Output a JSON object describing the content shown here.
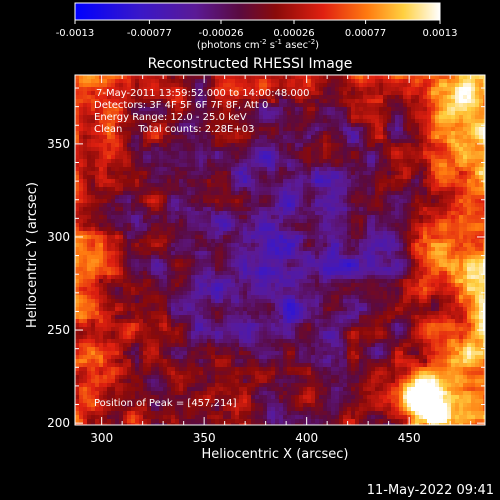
{
  "colorbar": {
    "ticks": [
      "-0.0013",
      "-0.00077",
      "-0.00026",
      "0.00026",
      "0.00077",
      "0.0013"
    ],
    "tick_values": [
      -0.0013,
      -0.00077,
      -0.00026,
      0.00026,
      0.00077,
      0.0013
    ],
    "range": [
      -0.0013,
      0.0013
    ],
    "unit_text": "(photons cm",
    "unit_exp1": "-2",
    "unit_mid": " s",
    "unit_exp2": "-1",
    "unit_mid2": " asec",
    "unit_exp3": "-2",
    "unit_end": ")"
  },
  "chart_data": {
    "type": "heatmap",
    "title": "Reconstructed RHESSI Image",
    "xlabel": "Heliocentric X (arcsec)",
    "ylabel": "Heliocentric Y (arcsec)",
    "xlim": [
      287,
      487
    ],
    "ylim": [
      199,
      387
    ],
    "x_ticks": [
      "300",
      "350",
      "400",
      "450"
    ],
    "x_tick_values": [
      300,
      350,
      400,
      450
    ],
    "y_ticks": [
      "200",
      "250",
      "300",
      "350"
    ],
    "y_tick_values": [
      200,
      250,
      300,
      350
    ],
    "colormap": "hessi_ct (blue-purple-red-yellow-white)",
    "annotations": [
      "7-May-2011 13:59:52.000 to 14:00:48.000",
      "Detectors: 3F 4F 5F 6F 7F 8F, Att 0",
      "Energy Range: 12.0 - 25.0 keV",
      "Clean     Total counts: 2.28E+03"
    ],
    "peak_label": "Position of Peak = [457,214]",
    "peak_position": [
      457,
      214
    ]
  },
  "footer": {
    "timestamp": "11-May-2022 09:41"
  },
  "colors": {
    "background": "#000000",
    "text": "#ffffff"
  }
}
